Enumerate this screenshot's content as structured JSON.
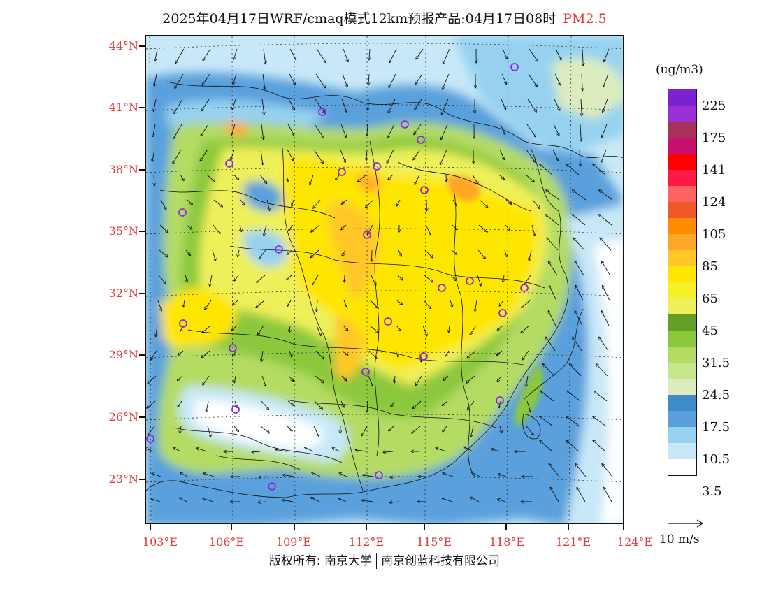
{
  "title": {
    "main": "2025年04月17日WRF/cmaq模式12km预报产品:04月17日08时",
    "pollutant": "PM2.5"
  },
  "map": {
    "lat_labels": [
      "44°N",
      "41°N",
      "38°N",
      "35°N",
      "32°N",
      "29°N",
      "26°N",
      "23°N"
    ],
    "lon_labels": [
      "103°E",
      "106°E",
      "109°E",
      "112°E",
      "115°E",
      "118°E",
      "121°E",
      "124°E"
    ],
    "lat_range": [
      21,
      44.5
    ],
    "lon_range": [
      102.8,
      124
    ]
  },
  "legend": {
    "unit": "(ug/m3)",
    "colors": [
      "#7a22d2",
      "#9a30d6",
      "#a8325a",
      "#c8106e",
      "#ff0000",
      "#ff1a46",
      "#ff6464",
      "#f05a28",
      "#ff8c00",
      "#ffa828",
      "#ffc828",
      "#ffe600",
      "#f5f028",
      "#eef05a",
      "#64a028",
      "#8cc83c",
      "#b4dc64",
      "#c8e68c",
      "#dcecbe",
      "#3c8cc8",
      "#5aa0dc",
      "#96d2f0",
      "#c8e8f8",
      "#ffffff"
    ],
    "labels": [
      "225",
      "175",
      "141",
      "124",
      "105",
      "85",
      "65",
      "45",
      "31.5",
      "24.5",
      "17.5",
      "10.5",
      "3.5"
    ]
  },
  "wind_scale": {
    "label": "10 m/s"
  },
  "footer": {
    "left": "版权所有: 南京大学",
    "right": "南京创蓝科技有限公司"
  },
  "icons": {
    "station_marker": "purple-circle-icon",
    "wind_vector": "arrow-icon"
  }
}
